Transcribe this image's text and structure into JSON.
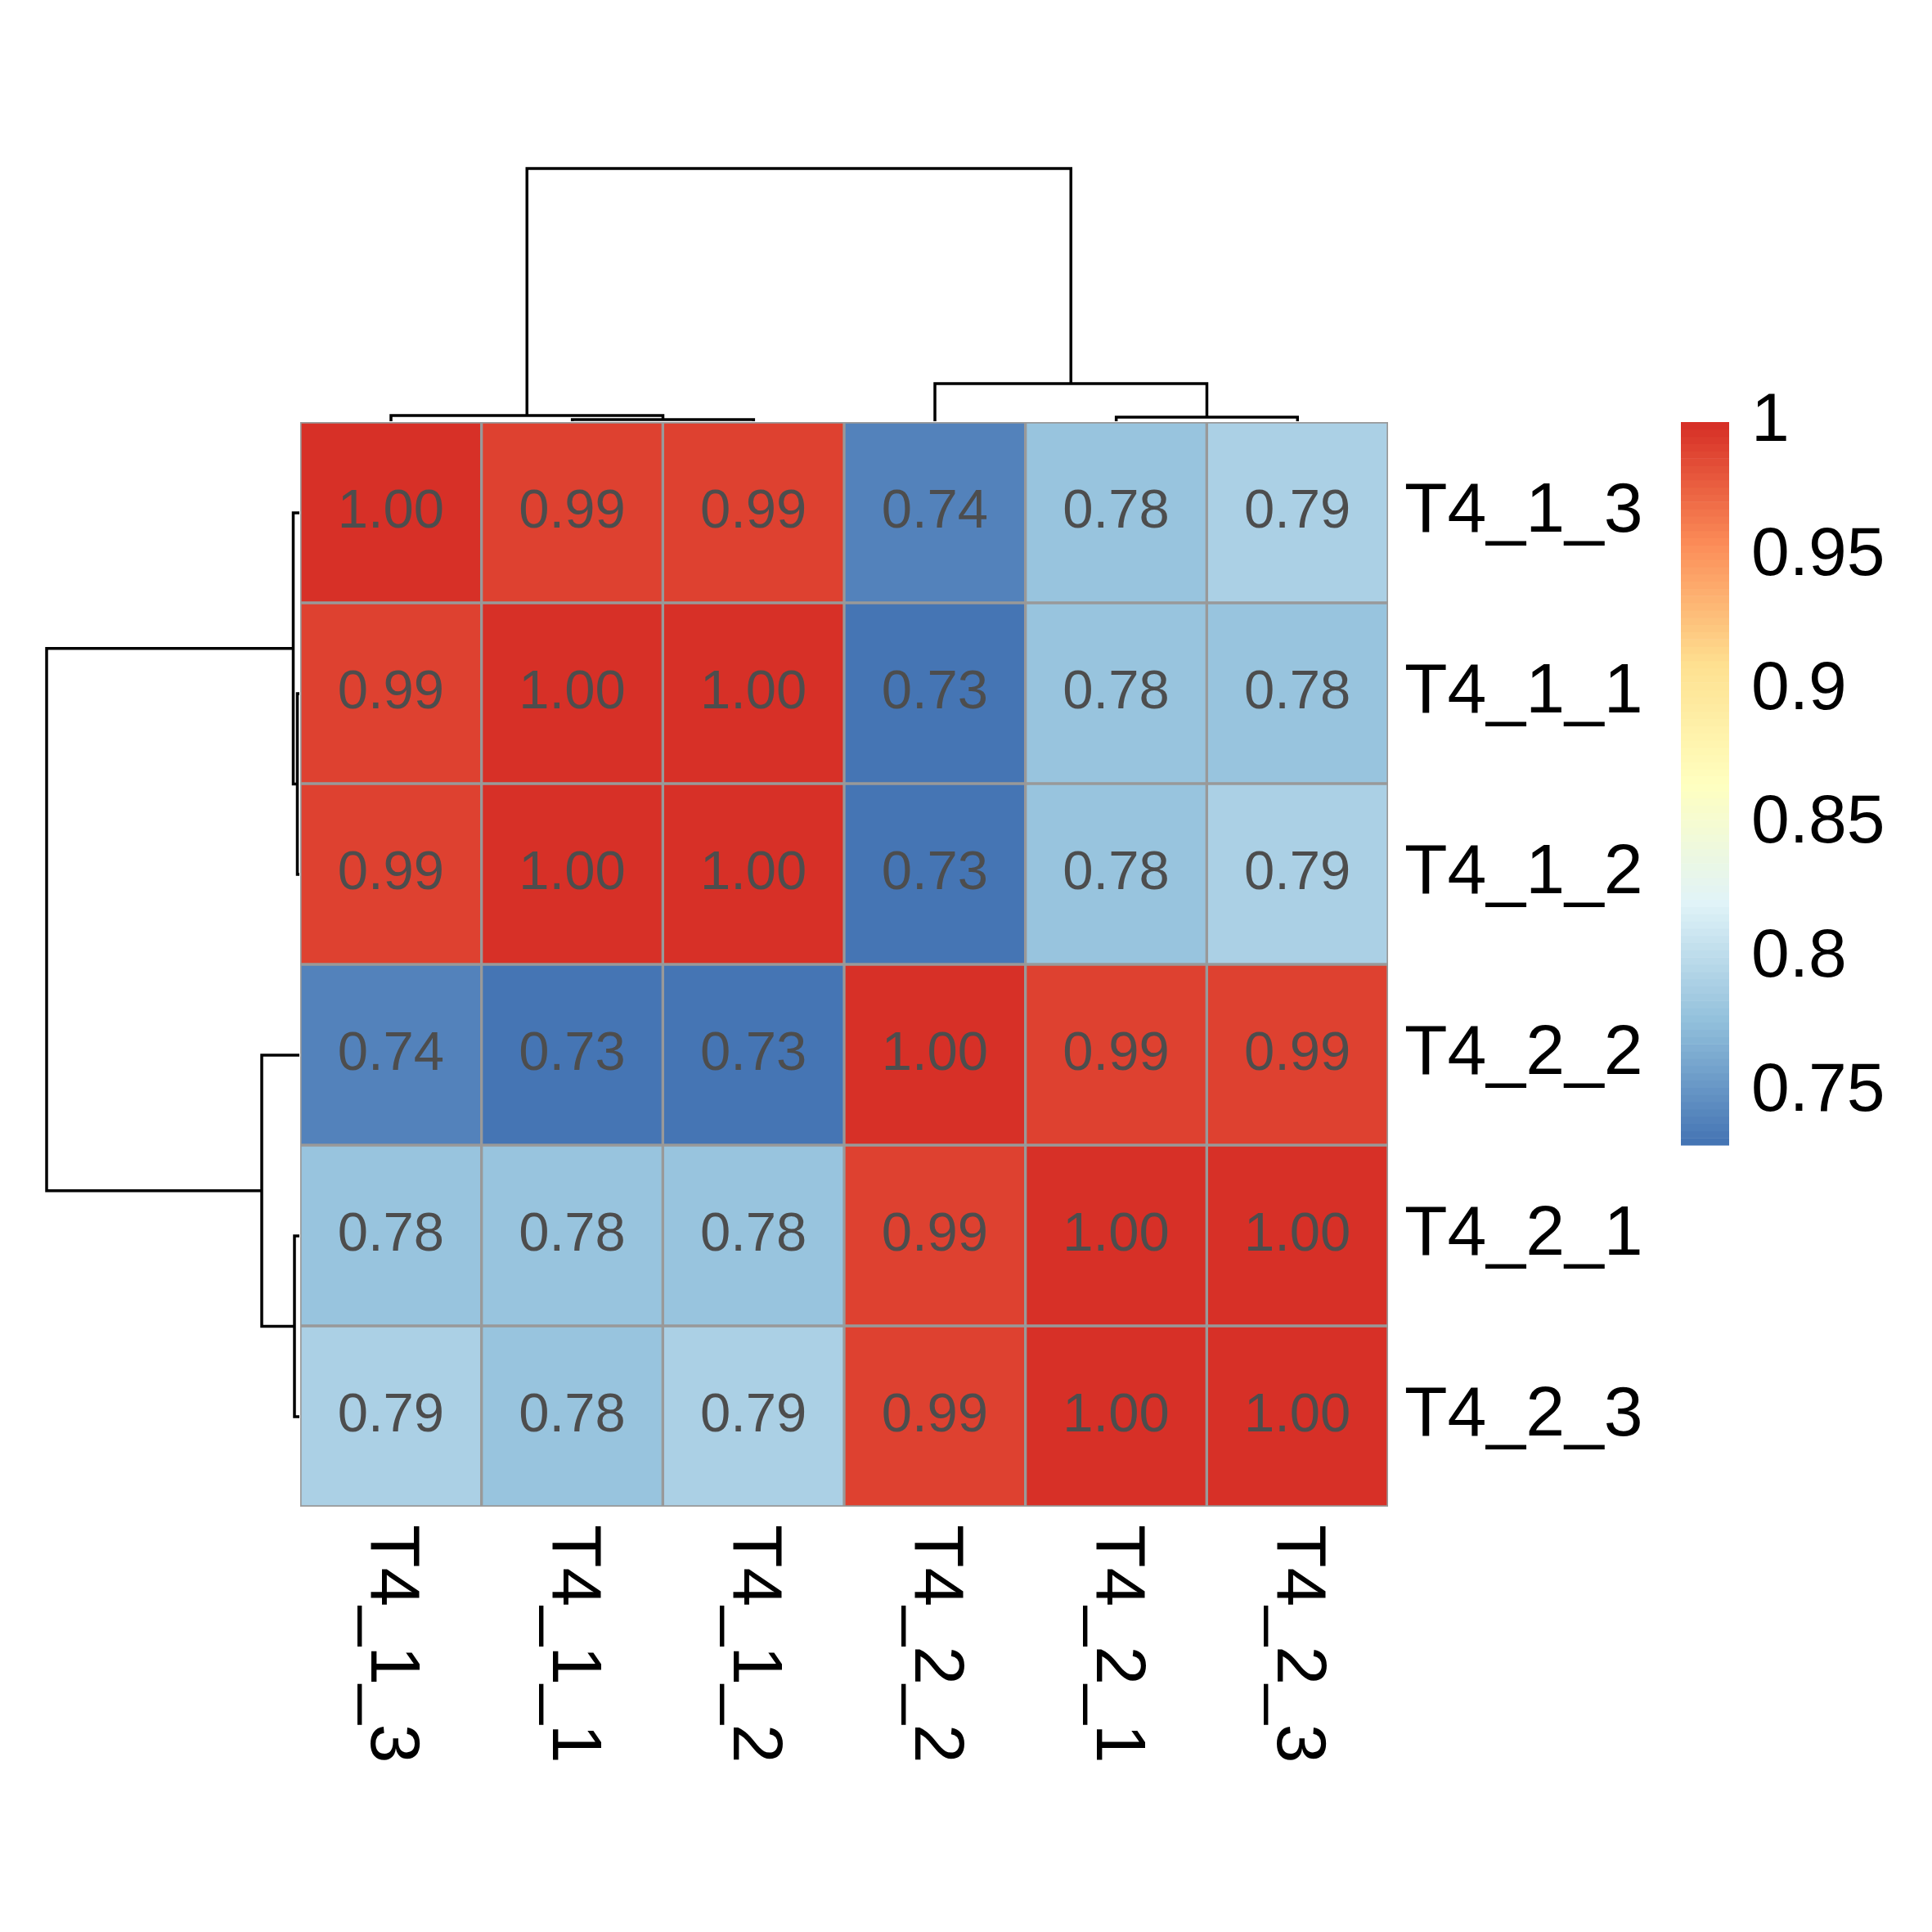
{
  "chart_data": {
    "type": "heatmap",
    "categories": [
      "T4_1_3",
      "T4_1_1",
      "T4_1_2",
      "T4_2_2",
      "T4_2_1",
      "T4_2_3"
    ],
    "y_categories": [
      "T4_1_3",
      "T4_1_1",
      "T4_1_2",
      "T4_2_2",
      "T4_2_1",
      "T4_2_3"
    ],
    "cells": [
      [
        1.0,
        0.99,
        0.99,
        0.74,
        0.78,
        0.79
      ],
      [
        0.99,
        1.0,
        1.0,
        0.73,
        0.78,
        0.78
      ],
      [
        0.99,
        1.0,
        1.0,
        0.73,
        0.78,
        0.79
      ],
      [
        0.74,
        0.73,
        0.73,
        1.0,
        0.99,
        0.99
      ],
      [
        0.78,
        0.78,
        0.78,
        0.99,
        1.0,
        1.0
      ],
      [
        0.79,
        0.78,
        0.79,
        0.99,
        1.0,
        1.0
      ]
    ],
    "cell_labels": [
      [
        "1.00",
        "0.99",
        "0.99",
        "0.74",
        "0.78",
        "0.79"
      ],
      [
        "0.99",
        "1.00",
        "1.00",
        "0.73",
        "0.78",
        "0.78"
      ],
      [
        "0.99",
        "1.00",
        "1.00",
        "0.73",
        "0.78",
        "0.79"
      ],
      [
        "0.74",
        "0.73",
        "0.73",
        "1.00",
        "0.99",
        "0.99"
      ],
      [
        "0.78",
        "0.78",
        "0.78",
        "0.99",
        "1.00",
        "1.00"
      ],
      [
        "0.79",
        "0.78",
        "0.79",
        "0.99",
        "1.00",
        "1.00"
      ]
    ],
    "clim": [
      0.73,
      1
    ],
    "cticks": [
      0.75,
      0.8,
      0.85,
      0.9,
      0.95,
      1
    ]
  }
}
